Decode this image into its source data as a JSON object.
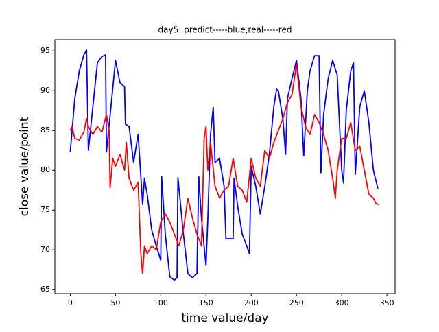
{
  "chart_data": {
    "type": "line",
    "title": "day5: predict-----blue,real-----red",
    "x_label": "time value/day",
    "y_label": "close value/point",
    "xlim": [
      -17,
      359
    ],
    "ylim": [
      64.5,
      96.4
    ],
    "xticks": [
      0,
      50,
      100,
      150,
      200,
      250,
      300,
      350
    ],
    "yticks": [
      65,
      70,
      75,
      80,
      85,
      90,
      95
    ],
    "series": [
      {
        "color": "#0000ff",
        "x": [
          0,
          5,
          10,
          15,
          18,
          20,
          25,
          30,
          35,
          39,
          40,
          45,
          50,
          55,
          60,
          61,
          65,
          70,
          75,
          80,
          82,
          85,
          90,
          95,
          100,
          101,
          105,
          110,
          115,
          118,
          119,
          125,
          130,
          135,
          140,
          142,
          145,
          150,
          152,
          155,
          158,
          160,
          165,
          170,
          172,
          175,
          180,
          181,
          185,
          190,
          195,
          198,
          200,
          205,
          210,
          215,
          220,
          225,
          228,
          230,
          235,
          238,
          240,
          245,
          250,
          255,
          258,
          262,
          265,
          270,
          275,
          277,
          280,
          285,
          290,
          295,
          300,
          302,
          305,
          310,
          313,
          315,
          320,
          325,
          330,
          335,
          340
        ],
        "values": [
          82.3,
          89,
          92.5,
          94.5,
          95.1,
          82.5,
          88,
          93.5,
          94.3,
          94.5,
          82.3,
          88,
          93.8,
          91,
          90.5,
          85.8,
          85.5,
          81,
          84.5,
          75.7,
          79,
          77,
          72.5,
          70.5,
          68.7,
          79.2,
          72,
          66.6,
          66.2,
          66.5,
          79.1,
          72,
          67,
          66.5,
          67,
          79.2,
          74,
          68,
          73.8,
          84.5,
          87.9,
          81,
          81.5,
          78,
          71.4,
          71.4,
          71.4,
          79,
          75.5,
          72,
          70.5,
          69.5,
          80.5,
          78,
          74.5,
          78,
          82,
          88,
          90.2,
          90,
          86.4,
          82,
          89,
          91.5,
          93.8,
          89,
          81.8,
          90,
          92.5,
          94.4,
          94.4,
          79.7,
          87,
          91.5,
          93.8,
          92,
          80,
          78.4,
          87.5,
          92.5,
          93.5,
          79.5,
          88,
          90,
          86,
          80,
          77.7
        ]
      },
      {
        "color": "#ff0000",
        "x": [
          0,
          2,
          5,
          10,
          15,
          18,
          20,
          25,
          30,
          35,
          40,
          43,
          44,
          47,
          50,
          55,
          60,
          62,
          65,
          70,
          75,
          78,
          80,
          82,
          85,
          90,
          95,
          100,
          105,
          110,
          115,
          120,
          125,
          130,
          135,
          140,
          145,
          148,
          150,
          152,
          155,
          160,
          165,
          170,
          175,
          180,
          185,
          190,
          195,
          200,
          205,
          210,
          215,
          220,
          225,
          230,
          235,
          240,
          245,
          250,
          255,
          260,
          265,
          270,
          275,
          280,
          285,
          290,
          293,
          295,
          300,
          305,
          310,
          315,
          320,
          325,
          330,
          335,
          338,
          341
        ],
        "values": [
          85,
          85.5,
          84,
          83.8,
          84.8,
          86.5,
          85.5,
          84.5,
          85.5,
          84.8,
          87,
          85,
          77.8,
          81.5,
          80.5,
          82,
          80,
          83.5,
          79,
          77.5,
          78.5,
          69.5,
          67,
          70.5,
          69.5,
          70.5,
          70,
          73.5,
          74.5,
          73.5,
          72,
          70.5,
          72.5,
          76.5,
          74,
          72,
          70.5,
          84,
          85.5,
          80,
          83.5,
          78,
          76.5,
          77.5,
          78,
          81.5,
          78,
          77.5,
          76,
          81.5,
          79,
          78,
          82.5,
          81.5,
          83.5,
          85,
          86.5,
          88.5,
          89.5,
          93.3,
          88,
          85.5,
          84.5,
          87,
          86,
          84.5,
          82.5,
          79,
          76.5,
          80,
          84,
          84,
          86,
          82.5,
          83,
          80,
          77,
          76.5,
          75.8,
          75.7
        ]
      }
    ]
  }
}
